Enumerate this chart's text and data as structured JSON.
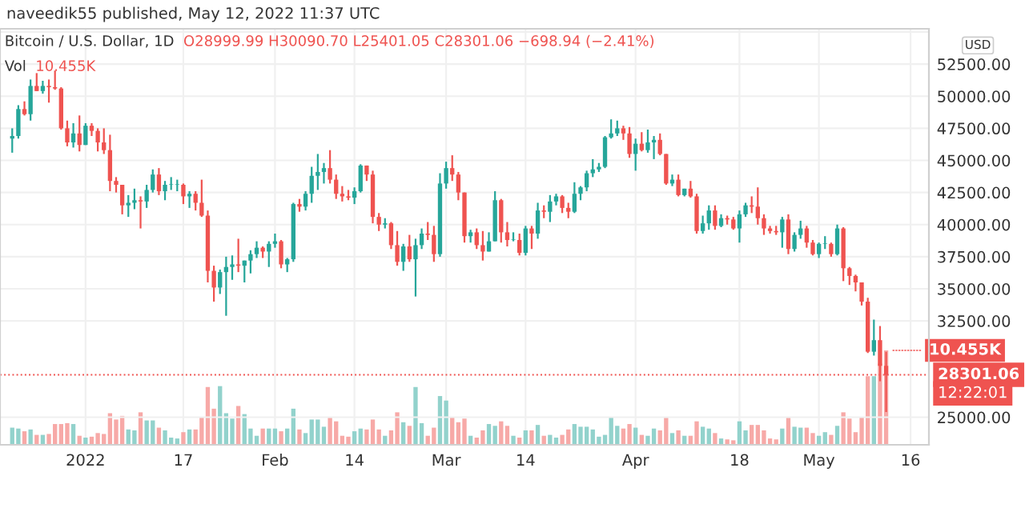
{
  "chart_data": [
    {
      "type": "candlestick",
      "title": "Bitcoin / U.S. Dollar, 1D",
      "ylabel": "USD",
      "annotations": [
        "naveedik55 published, May 12, 2022 11:37 UTC",
        "O28999.99 H30090.70 L25401.05 C28301.06 −698.94 (−2.41%)",
        "12:22:01"
      ],
      "colors": [
        "#26a69a",
        "#26a69a",
        "#ef5350",
        "#26a69a",
        "#ef5350",
        "#26a69a",
        "#ef5350",
        "#ef5350",
        "#ef5350",
        "#ef5350",
        "#26a69a",
        "#ef5350",
        "#26a69a",
        "#ef5350",
        "#ef5350",
        "#ef5350",
        "#ef5350",
        "#ef5350",
        "#ef5350",
        "#26a69a",
        "#26a69a",
        "#ef5350",
        "#26a69a",
        "#26a69a",
        "#ef5350",
        "#26a69a",
        "#26a69a",
        "#26a69a",
        "#ef5350",
        "#26a69a",
        "#ef5350",
        "#ef5350",
        "#ef5350",
        "#ef5350",
        "#26a69a",
        "#26a69a",
        "#26a69a",
        "#ef5350",
        "#26a69a",
        "#26a69a",
        "#26a69a",
        "#ef5350",
        "#26a69a",
        "#26a69a",
        "#ef5350",
        "#26a69a",
        "#26a69a",
        "#ef5350",
        "#26a69a",
        "#26a69a",
        "#26a69a",
        "#26a69a",
        "#ef5350",
        "#ef5350",
        "#ef5350",
        "#ef5350",
        "#26a69a",
        "#26a69a",
        "#ef5350",
        "#ef5350",
        "#ef5350",
        "#26a69a",
        "#ef5350",
        "#ef5350",
        "#26a69a",
        "#ef5350",
        "#26a69a",
        "#26a69a",
        "#ef5350",
        "#ef5350",
        "#26a69a",
        "#26a69a",
        "#ef5350",
        "#ef5350",
        "#ef5350",
        "#26a69a",
        "#ef5350",
        "#ef5350",
        "#26a69a",
        "#26a69a",
        "#ef5350",
        "#ef5350",
        "#26a69a",
        "#ef5350",
        "#26a69a",
        "#ef5350",
        "#26a69a",
        "#ef5350",
        "#26a69a",
        "#26a69a",
        "#ef5350",
        "#ef5350",
        "#26a69a",
        "#26a69a",
        "#26a69a",
        "#26a69a",
        "#26a69a",
        "#26a69a",
        "#26a69a",
        "#26a69a",
        "#ef5350",
        "#ef5350",
        "#26a69a",
        "#ef5350",
        "#26a69a",
        "#26a69a",
        "#ef5350",
        "#ef5350",
        "#26a69a",
        "#ef5350",
        "#26a69a",
        "#ef5350",
        "#ef5350",
        "#26a69a",
        "#26a69a",
        "#ef5350",
        "#26a69a",
        "#ef5350",
        "#ef5350",
        "#26a69a",
        "#26a69a",
        "#ef5350",
        "#ef5350",
        "#ef5350",
        "#ef5350",
        "#ef5350",
        "#26a69a",
        "#ef5350",
        "#26a69a",
        "#26a69a",
        "#ef5350",
        "#ef5350",
        "#26a69a",
        "#26a69a",
        "#ef5350",
        "#26a69a",
        "#ef5350",
        "#ef5350",
        "#ef5350",
        "#ef5350",
        "#ef5350",
        "#26a69a",
        "#ef5350",
        "#ef5350"
      ],
      "x": [
        "2021-12-20",
        "2021-12-21",
        "2021-12-22",
        "2021-12-23",
        "2021-12-24",
        "2021-12-25",
        "2021-12-26",
        "2021-12-27",
        "2021-12-28",
        "2021-12-29",
        "2021-12-30",
        "2021-12-31",
        "2022-01-01",
        "2022-01-02",
        "2022-01-03",
        "2022-01-04",
        "2022-01-05",
        "2022-01-06",
        "2022-01-07",
        "2022-01-08",
        "2022-01-09",
        "2022-01-10",
        "2022-01-11",
        "2022-01-12",
        "2022-01-13",
        "2022-01-14",
        "2022-01-15",
        "2022-01-16",
        "2022-01-17",
        "2022-01-18",
        "2022-01-19",
        "2022-01-20",
        "2022-01-21",
        "2022-01-22",
        "2022-01-23",
        "2022-01-24",
        "2022-01-25",
        "2022-01-26",
        "2022-01-27",
        "2022-01-28",
        "2022-01-29",
        "2022-01-30",
        "2022-01-31",
        "2022-02-01",
        "2022-02-02",
        "2022-02-03",
        "2022-02-04",
        "2022-02-05",
        "2022-02-06",
        "2022-02-07",
        "2022-02-08",
        "2022-02-09",
        "2022-02-10",
        "2022-02-11",
        "2022-02-12",
        "2022-02-13",
        "2022-02-14",
        "2022-02-15",
        "2022-02-16",
        "2022-02-17",
        "2022-02-18",
        "2022-02-19",
        "2022-02-20",
        "2022-02-21",
        "2022-02-22",
        "2022-02-23",
        "2022-02-24",
        "2022-02-25",
        "2022-02-26",
        "2022-02-27",
        "2022-02-28",
        "2022-03-01",
        "2022-03-02",
        "2022-03-03",
        "2022-03-04",
        "2022-03-05",
        "2022-03-06",
        "2022-03-07",
        "2022-03-08",
        "2022-03-09",
        "2022-03-10",
        "2022-03-11",
        "2022-03-12",
        "2022-03-13",
        "2022-03-14",
        "2022-03-15",
        "2022-03-16",
        "2022-03-17",
        "2022-03-18",
        "2022-03-19",
        "2022-03-20",
        "2022-03-21",
        "2022-03-22",
        "2022-03-23",
        "2022-03-24",
        "2022-03-25",
        "2022-03-26",
        "2022-03-27",
        "2022-03-28",
        "2022-03-29",
        "2022-03-30",
        "2022-03-31",
        "2022-04-01",
        "2022-04-02",
        "2022-04-03",
        "2022-04-04",
        "2022-04-05",
        "2022-04-06",
        "2022-04-07",
        "2022-04-08",
        "2022-04-09",
        "2022-04-10",
        "2022-04-11",
        "2022-04-12",
        "2022-04-13",
        "2022-04-14",
        "2022-04-15",
        "2022-04-16",
        "2022-04-17",
        "2022-04-18",
        "2022-04-19",
        "2022-04-20",
        "2022-04-21",
        "2022-04-22",
        "2022-04-23",
        "2022-04-24",
        "2022-04-25",
        "2022-04-26",
        "2022-04-27",
        "2022-04-28",
        "2022-04-29",
        "2022-04-30",
        "2022-05-01",
        "2022-05-02",
        "2022-05-03",
        "2022-05-04",
        "2022-05-05",
        "2022-05-06",
        "2022-05-07",
        "2022-05-08",
        "2022-05-09",
        "2022-05-10",
        "2022-05-11",
        "2022-05-12"
      ],
      "ohlc": [
        [
          46700,
          47500,
          45600,
          46900
        ],
        [
          46900,
          49300,
          46700,
          49000
        ],
        [
          49000,
          49600,
          48500,
          48600
        ],
        [
          48600,
          51300,
          48100,
          50800
        ],
        [
          50800,
          51800,
          50400,
          50400
        ],
        [
          50400,
          51200,
          50200,
          50800
        ],
        [
          50800,
          51300,
          49500,
          50700
        ],
        [
          50700,
          52000,
          50500,
          50600
        ],
        [
          50600,
          50700,
          47400,
          47500
        ],
        [
          47500,
          48100,
          46100,
          46400
        ],
        [
          46400,
          47900,
          46000,
          47100
        ],
        [
          47100,
          48500,
          45700,
          46200
        ],
        [
          46200,
          47900,
          46200,
          47700
        ],
        [
          47700,
          47900,
          46900,
          47300
        ],
        [
          47300,
          47500,
          45700,
          46400
        ],
        [
          46400,
          47500,
          45500,
          45800
        ],
        [
          45800,
          47000,
          42600,
          43400
        ],
        [
          43400,
          43700,
          42500,
          43100
        ],
        [
          43100,
          43100,
          40800,
          41500
        ],
        [
          41500,
          42300,
          40600,
          41700
        ],
        [
          41700,
          42800,
          41200,
          41900
        ],
        [
          41900,
          42200,
          39700,
          41800
        ],
        [
          41800,
          43100,
          41300,
          42700
        ],
        [
          42700,
          44300,
          42500,
          43900
        ],
        [
          43900,
          44400,
          42300,
          42600
        ],
        [
          42600,
          43400,
          41900,
          43100
        ],
        [
          43100,
          43700,
          42700,
          43100
        ],
        [
          43100,
          43500,
          42600,
          43100
        ],
        [
          43100,
          43200,
          41600,
          42200
        ],
        [
          42200,
          42600,
          41300,
          42400
        ],
        [
          42400,
          42600,
          41100,
          41700
        ],
        [
          41700,
          43500,
          40600,
          40700
        ],
        [
          40700,
          41100,
          35500,
          36400
        ],
        [
          36400,
          36800,
          34000,
          35100
        ],
        [
          35100,
          36500,
          34600,
          36300
        ],
        [
          36300,
          37500,
          32900,
          36700
        ],
        [
          36700,
          37600,
          35700,
          36900
        ],
        [
          36900,
          38900,
          36300,
          36800
        ],
        [
          36800,
          37200,
          35500,
          37200
        ],
        [
          37200,
          38000,
          36200,
          37700
        ],
        [
          37700,
          38700,
          37400,
          38200
        ],
        [
          38200,
          38300,
          37400,
          37900
        ],
        [
          37900,
          38700,
          36700,
          38500
        ],
        [
          38500,
          39300,
          38200,
          38700
        ],
        [
          38700,
          38800,
          36600,
          36900
        ],
        [
          36900,
          37400,
          36300,
          37300
        ],
        [
          37300,
          41700,
          37100,
          41600
        ],
        [
          41600,
          42000,
          41000,
          41400
        ],
        [
          41400,
          42600,
          41100,
          42400
        ],
        [
          42400,
          44500,
          41700,
          43800
        ],
        [
          43800,
          45500,
          42700,
          44100
        ],
        [
          44100,
          44800,
          43200,
          44400
        ],
        [
          44400,
          45800,
          43200,
          43500
        ],
        [
          43500,
          43900,
          42000,
          42400
        ],
        [
          42400,
          43000,
          41800,
          42200
        ],
        [
          42200,
          42700,
          41900,
          42100
        ],
        [
          42100,
          42900,
          41600,
          42600
        ],
        [
          42600,
          44700,
          42500,
          44600
        ],
        [
          44600,
          44600,
          43400,
          43900
        ],
        [
          43900,
          44200,
          40100,
          40600
        ],
        [
          40600,
          40900,
          39500,
          40000
        ],
        [
          40000,
          40500,
          39700,
          40100
        ],
        [
          40100,
          40200,
          38100,
          38400
        ],
        [
          38400,
          39500,
          36800,
          37100
        ],
        [
          37100,
          38500,
          36400,
          38300
        ],
        [
          38300,
          39200,
          37100,
          37300
        ],
        [
          37300,
          38900,
          34400,
          38400
        ],
        [
          38400,
          39700,
          38100,
          39300
        ],
        [
          39300,
          40200,
          38800,
          39200
        ],
        [
          39200,
          39900,
          37100,
          37700
        ],
        [
          37700,
          44000,
          37500,
          43200
        ],
        [
          43200,
          44900,
          42800,
          44400
        ],
        [
          44400,
          45400,
          43400,
          43900
        ],
        [
          43900,
          44100,
          41900,
          42500
        ],
        [
          42500,
          42500,
          38600,
          39100
        ],
        [
          39100,
          39600,
          38600,
          39400
        ],
        [
          39400,
          39700,
          38100,
          38400
        ],
        [
          38400,
          39500,
          37200,
          37900
        ],
        [
          37900,
          39400,
          37900,
          38700
        ],
        [
          38700,
          42600,
          38700,
          41900
        ],
        [
          41900,
          42000,
          38600,
          39400
        ],
        [
          39400,
          40200,
          38300,
          38800
        ],
        [
          38800,
          39400,
          38700,
          38800
        ],
        [
          38800,
          39300,
          37600,
          37800
        ],
        [
          37800,
          39900,
          37600,
          39700
        ],
        [
          39700,
          39900,
          38100,
          39300
        ],
        [
          39300,
          41700,
          38900,
          41100
        ],
        [
          41100,
          41500,
          40500,
          41000
        ],
        [
          41000,
          42300,
          40200,
          41800
        ],
        [
          41800,
          42400,
          41500,
          42200
        ],
        [
          42200,
          42300,
          40900,
          41300
        ],
        [
          41300,
          41700,
          40500,
          41000
        ],
        [
          41000,
          43300,
          40900,
          42400
        ],
        [
          42400,
          43000,
          41900,
          42900
        ],
        [
          42900,
          44200,
          42600,
          44000
        ],
        [
          44000,
          45100,
          43700,
          44300
        ],
        [
          44300,
          44800,
          44100,
          44500
        ],
        [
          44500,
          46900,
          44400,
          46800
        ],
        [
          46800,
          48200,
          46700,
          47100
        ],
        [
          47100,
          48100,
          46900,
          47500
        ],
        [
          47500,
          47700,
          46600,
          47100
        ],
        [
          47100,
          47600,
          45200,
          45500
        ],
        [
          45500,
          46700,
          44200,
          46300
        ],
        [
          46300,
          47200,
          45700,
          45800
        ],
        [
          45800,
          47400,
          45600,
          46400
        ],
        [
          46400,
          46900,
          45100,
          46600
        ],
        [
          46600,
          47100,
          45400,
          45500
        ],
        [
          45500,
          45500,
          43100,
          43200
        ],
        [
          43200,
          43900,
          43000,
          43500
        ],
        [
          43500,
          43900,
          42200,
          42300
        ],
        [
          42300,
          42800,
          42200,
          42800
        ],
        [
          42800,
          43400,
          42100,
          42200
        ],
        [
          42200,
          42400,
          39300,
          39500
        ],
        [
          39500,
          40700,
          39300,
          40100
        ],
        [
          40100,
          41500,
          39600,
          41100
        ],
        [
          41100,
          41500,
          39600,
          39900
        ],
        [
          39900,
          40800,
          39800,
          40500
        ],
        [
          40500,
          40700,
          40000,
          40400
        ],
        [
          40400,
          40600,
          39600,
          39700
        ],
        [
          39700,
          41100,
          38600,
          40800
        ],
        [
          40800,
          41700,
          40600,
          41500
        ],
        [
          41500,
          42200,
          40900,
          41400
        ],
        [
          41400,
          42900,
          40000,
          40500
        ],
        [
          40500,
          40800,
          39200,
          39700
        ],
        [
          39700,
          39900,
          39300,
          39500
        ],
        [
          39500,
          39900,
          39200,
          39400
        ],
        [
          39400,
          40600,
          38200,
          40400
        ],
        [
          40400,
          40800,
          37700,
          38100
        ],
        [
          38100,
          39400,
          37900,
          39200
        ],
        [
          39200,
          40300,
          38900,
          39700
        ],
        [
          39700,
          39900,
          38200,
          38600
        ],
        [
          38600,
          38800,
          37600,
          37700
        ],
        [
          37700,
          38600,
          37400,
          38500
        ],
        [
          38500,
          39100,
          38100,
          38500
        ],
        [
          38500,
          38600,
          37500,
          37700
        ],
        [
          37700,
          40000,
          37600,
          39700
        ],
        [
          39700,
          39800,
          35600,
          36600
        ],
        [
          36600,
          36700,
          35300,
          36000
        ],
        [
          36000,
          36100,
          34800,
          35500
        ],
        [
          35500,
          35500,
          33700,
          34000
        ],
        [
          34000,
          34300,
          30000,
          30100
        ],
        [
          30100,
          32600,
          29800,
          31000
        ],
        [
          31000,
          32100,
          27800,
          29000
        ],
        [
          28999.99,
          30090.7,
          25401.05,
          28301.06
        ]
      ],
      "xlim": [
        "2021-12-18",
        "2022-05-19"
      ],
      "xticks": [
        {
          "value": "2022-01-01",
          "label": "2022"
        },
        {
          "value": "2022-01-17",
          "label": "17"
        },
        {
          "value": "2022-02-01",
          "label": "Feb"
        },
        {
          "value": "2022-02-14",
          "label": "14"
        },
        {
          "value": "2022-03-01",
          "label": "Mar"
        },
        {
          "value": "2022-03-14",
          "label": "14"
        },
        {
          "value": "2022-04-01",
          "label": "Apr"
        },
        {
          "value": "2022-04-18",
          "label": "18"
        },
        {
          "value": "2022-05-01",
          "label": "May"
        },
        {
          "value": "2022-05-16",
          "label": "16"
        }
      ],
      "ylim": [
        22850,
        55250
      ],
      "yticks": [
        {
          "value": 25000,
          "label": "25000.00"
        },
        {
          "value": 32500,
          "label": "32500.00"
        },
        {
          "value": 35000,
          "label": "35000.00"
        },
        {
          "value": 37500,
          "label": "37500.00"
        },
        {
          "value": 40000,
          "label": "40000.00"
        },
        {
          "value": 42500,
          "label": "42500.00"
        },
        {
          "value": 45000,
          "label": "45000.00"
        },
        {
          "value": 47500,
          "label": "47500.00"
        },
        {
          "value": 50000,
          "label": "50000.00"
        },
        {
          "value": 52500,
          "label": "52500.00"
        },
        {
          "value": 55000,
          "label": null
        }
      ],
      "ref_lines": [
        {
          "axis": "y",
          "value": 28301.06,
          "label": "28301.06",
          "color": "#ef5350",
          "line_style": "dotted"
        }
      ],
      "grid": true,
      "legend": false
    },
    {
      "type": "bar",
      "categories": [
        null,
        null,
        null,
        null,
        null,
        null,
        null,
        null,
        null,
        null,
        null,
        null,
        null,
        null,
        null,
        null,
        null,
        null,
        null,
        null,
        null,
        null,
        null,
        null,
        null,
        null,
        null,
        null,
        null,
        null,
        null,
        null,
        null,
        null,
        null,
        null,
        null,
        null,
        null,
        null,
        null,
        null,
        null,
        null,
        null,
        null,
        null,
        null,
        null,
        null,
        null,
        null,
        null,
        null,
        null,
        null,
        null,
        null,
        null,
        null,
        null,
        null,
        null,
        null,
        null,
        null,
        null,
        null,
        null,
        null,
        null,
        null,
        null,
        null,
        null,
        null,
        null,
        null,
        null,
        null,
        null,
        null,
        null,
        null,
        null,
        null,
        null,
        null,
        null,
        null,
        null,
        null,
        null,
        null,
        null,
        null,
        null,
        null,
        null,
        null,
        null,
        null,
        null,
        null,
        null,
        null,
        null,
        null,
        null,
        null,
        null,
        null,
        null,
        null,
        null,
        null,
        null,
        null,
        null,
        null,
        null,
        null,
        null,
        null,
        null,
        null,
        null,
        null,
        null,
        null,
        null,
        null,
        null,
        null,
        null,
        null,
        null,
        null,
        null,
        null,
        null,
        null,
        null,
        null
      ],
      "series": [
        {
          "name": "Vol",
          "colors": [
            "#92d2cc",
            "#92d2cc",
            "#f7a9a7",
            "#92d2cc",
            "#f7a9a7",
            "#92d2cc",
            "#f7a9a7",
            "#f7a9a7",
            "#f7a9a7",
            "#f7a9a7",
            "#92d2cc",
            "#f7a9a7",
            "#92d2cc",
            "#f7a9a7",
            "#f7a9a7",
            "#f7a9a7",
            "#f7a9a7",
            "#f7a9a7",
            "#f7a9a7",
            "#92d2cc",
            "#92d2cc",
            "#f7a9a7",
            "#92d2cc",
            "#92d2cc",
            "#f7a9a7",
            "#92d2cc",
            "#92d2cc",
            "#92d2cc",
            "#f7a9a7",
            "#92d2cc",
            "#f7a9a7",
            "#f7a9a7",
            "#f7a9a7",
            "#f7a9a7",
            "#92d2cc",
            "#92d2cc",
            "#92d2cc",
            "#f7a9a7",
            "#92d2cc",
            "#92d2cc",
            "#92d2cc",
            "#f7a9a7",
            "#92d2cc",
            "#92d2cc",
            "#f7a9a7",
            "#92d2cc",
            "#92d2cc",
            "#f7a9a7",
            "#92d2cc",
            "#92d2cc",
            "#92d2cc",
            "#92d2cc",
            "#f7a9a7",
            "#f7a9a7",
            "#f7a9a7",
            "#f7a9a7",
            "#92d2cc",
            "#92d2cc",
            "#f7a9a7",
            "#f7a9a7",
            "#f7a9a7",
            "#92d2cc",
            "#f7a9a7",
            "#f7a9a7",
            "#92d2cc",
            "#f7a9a7",
            "#92d2cc",
            "#92d2cc",
            "#f7a9a7",
            "#f7a9a7",
            "#92d2cc",
            "#92d2cc",
            "#f7a9a7",
            "#f7a9a7",
            "#f7a9a7",
            "#92d2cc",
            "#f7a9a7",
            "#f7a9a7",
            "#92d2cc",
            "#92d2cc",
            "#f7a9a7",
            "#f7a9a7",
            "#92d2cc",
            "#f7a9a7",
            "#92d2cc",
            "#f7a9a7",
            "#92d2cc",
            "#f7a9a7",
            "#92d2cc",
            "#92d2cc",
            "#f7a9a7",
            "#f7a9a7",
            "#92d2cc",
            "#92d2cc",
            "#92d2cc",
            "#92d2cc",
            "#92d2cc",
            "#92d2cc",
            "#92d2cc",
            "#92d2cc",
            "#f7a9a7",
            "#f7a9a7",
            "#92d2cc",
            "#f7a9a7",
            "#92d2cc",
            "#92d2cc",
            "#f7a9a7",
            "#f7a9a7",
            "#92d2cc",
            "#f7a9a7",
            "#92d2cc",
            "#f7a9a7",
            "#f7a9a7",
            "#92d2cc",
            "#92d2cc",
            "#f7a9a7",
            "#92d2cc",
            "#f7a9a7",
            "#f7a9a7",
            "#92d2cc",
            "#92d2cc",
            "#f7a9a7",
            "#f7a9a7",
            "#f7a9a7",
            "#f7a9a7",
            "#f7a9a7",
            "#92d2cc",
            "#f7a9a7",
            "#92d2cc",
            "#92d2cc",
            "#f7a9a7",
            "#f7a9a7",
            "#92d2cc",
            "#92d2cc",
            "#f7a9a7",
            "#92d2cc",
            "#f7a9a7",
            "#f7a9a7",
            "#f7a9a7",
            "#f7a9a7",
            "#f7a9a7",
            "#92d2cc",
            "#f7a9a7",
            "#f7a9a7"
          ],
          "values": [
            1.9,
            1.8,
            1.5,
            1.7,
            1.1,
            1.1,
            1.2,
            2.3,
            2.3,
            2.4,
            2.3,
            1.0,
            0.8,
            0.9,
            1.3,
            1.2,
            3.5,
            2.8,
            3.2,
            1.7,
            1.6,
            3.6,
            2.7,
            2.7,
            1.9,
            1.6,
            0.8,
            0.7,
            1.4,
            1.7,
            1.7,
            3.1,
            6.4,
            4.0,
            6.5,
            3.5,
            2.9,
            4.3,
            3.4,
            1.8,
            1.0,
            1.8,
            1.8,
            1.8,
            1.5,
            1.8,
            4.0,
            1.7,
            1.3,
            2.8,
            2.8,
            2.0,
            3.0,
            2.6,
            1.0,
            0.9,
            1.5,
            1.8,
            1.7,
            2.8,
            1.7,
            1.0,
            1.6,
            3.6,
            2.5,
            2.1,
            6.4,
            2.4,
            1.0,
            1.9,
            5.4,
            4.9,
            3.1,
            2.5,
            2.9,
            1.0,
            0.8,
            1.6,
            2.3,
            2.1,
            2.6,
            2.1,
            1.0,
            0.8,
            1.6,
            1.6,
            2.2,
            1.0,
            1.1,
            0.8,
            1.1,
            1.7,
            2.3,
            2.0,
            2.0,
            1.7,
            0.9,
            1.1,
            3.1,
            2.1,
            1.8,
            2.3,
            1.9,
            1.1,
            1.0,
            1.8,
            1.6,
            3.0,
            1.3,
            1.6,
            1.0,
            1.0,
            2.6,
            2.0,
            1.8,
            1.3,
            0.7,
            0.6,
            0.5,
            2.6,
            1.6,
            2.2,
            2.2,
            1.6,
            0.7,
            0.6,
            1.8,
            3.0,
            2.0,
            1.9,
            1.9,
            1.3,
            1.0,
            1.4,
            1.1,
            2.1,
            3.6,
            2.9,
            1.4,
            3.1,
            7.6,
            7.6,
            9.0,
            10.455
          ],
          "value_labels": [
            null,
            null,
            null,
            null,
            null,
            null,
            null,
            null,
            null,
            null,
            null,
            null,
            null,
            null,
            null,
            null,
            null,
            null,
            null,
            null,
            null,
            null,
            null,
            null,
            null,
            null,
            null,
            null,
            null,
            null,
            null,
            null,
            null,
            null,
            null,
            null,
            null,
            null,
            null,
            null,
            null,
            null,
            null,
            null,
            null,
            null,
            null,
            null,
            null,
            null,
            null,
            null,
            null,
            null,
            null,
            null,
            null,
            null,
            null,
            null,
            null,
            null,
            null,
            null,
            null,
            null,
            null,
            null,
            null,
            null,
            null,
            null,
            null,
            null,
            null,
            null,
            null,
            null,
            null,
            null,
            null,
            null,
            null,
            null,
            null,
            null,
            null,
            null,
            null,
            null,
            null,
            null,
            null,
            null,
            null,
            null,
            null,
            null,
            null,
            null,
            null,
            null,
            null,
            null,
            null,
            null,
            null,
            null,
            null,
            null,
            null,
            null,
            null,
            null,
            null,
            null,
            null,
            null,
            null,
            null,
            null,
            null,
            null,
            null,
            null,
            null,
            null,
            null,
            null,
            null,
            null,
            null,
            null,
            null,
            null,
            null,
            null,
            null,
            null,
            null,
            null,
            null,
            null,
            "10.455K"
          ]
        }
      ]
    }
  ]
}
